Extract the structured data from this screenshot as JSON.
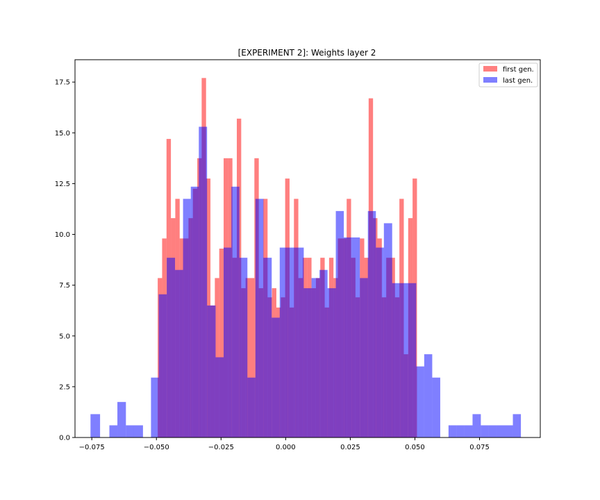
{
  "chart_data": {
    "type": "bar",
    "title": "[EXPERIMENT 2]: Weights layer 2",
    "xlabel": "",
    "ylabel": "",
    "xlim": [
      -0.0815,
      0.0985
    ],
    "ylim": [
      0,
      18.6
    ],
    "xticks": [
      "−0.075",
      "−0.050",
      "−0.025",
      "0.000",
      "0.025",
      "0.050",
      "0.075"
    ],
    "xtick_values": [
      -0.075,
      -0.05,
      -0.025,
      0.0,
      0.025,
      0.05,
      0.075
    ],
    "yticks": [
      "0.0",
      "2.5",
      "5.0",
      "7.5",
      "10.0",
      "12.5",
      "15.0",
      "17.5"
    ],
    "ytick_values": [
      0,
      2.5,
      5,
      7.5,
      10,
      12.5,
      15,
      17.5
    ],
    "grid": false,
    "legend_position": "top-right",
    "series": [
      {
        "name": "first gen.",
        "color": "#ff0000",
        "alpha": 0.5,
        "bins": [
          [
            -0.0495,
            -0.0478,
            7.85
          ],
          [
            -0.0478,
            -0.0461,
            9.8
          ],
          [
            -0.0461,
            -0.0444,
            14.7
          ],
          [
            -0.0444,
            -0.0427,
            10.8
          ],
          [
            -0.0427,
            -0.041,
            11.75
          ],
          [
            -0.041,
            -0.0393,
            9.8
          ],
          [
            -0.0393,
            -0.0376,
            9.8
          ],
          [
            -0.0376,
            -0.0359,
            10.8
          ],
          [
            -0.0359,
            -0.0342,
            12.25
          ],
          [
            -0.0342,
            -0.0325,
            13.75
          ],
          [
            -0.0325,
            -0.0308,
            17.7
          ],
          [
            -0.0308,
            -0.0291,
            12.75
          ],
          [
            -0.0291,
            -0.0274,
            6.5
          ],
          [
            -0.0274,
            -0.0257,
            7.85
          ],
          [
            -0.0257,
            -0.024,
            9.3
          ],
          [
            -0.024,
            -0.0223,
            13.75
          ],
          [
            -0.0223,
            -0.0206,
            13.75
          ],
          [
            -0.0206,
            -0.0189,
            8.85
          ],
          [
            -0.0189,
            -0.0172,
            15.7
          ],
          [
            -0.0172,
            -0.0155,
            7.35
          ],
          [
            -0.0155,
            -0.0138,
            7.85
          ],
          [
            -0.0138,
            -0.0121,
            7.85
          ],
          [
            -0.0121,
            -0.0104,
            13.75
          ],
          [
            -0.0104,
            -0.0087,
            7.35
          ],
          [
            -0.0087,
            -0.007,
            11.75
          ],
          [
            -0.007,
            -0.0053,
            6.9
          ],
          [
            -0.0053,
            -0.0036,
            7.35
          ],
          [
            -0.0036,
            -0.0019,
            6.4
          ],
          [
            -0.0019,
            -0.0002,
            6.9
          ],
          [
            -0.0002,
            0.0015,
            12.75
          ],
          [
            0.0015,
            0.0032,
            6.4
          ],
          [
            0.0032,
            0.0049,
            11.75
          ],
          [
            0.0049,
            0.0066,
            7.85
          ],
          [
            0.0066,
            0.0083,
            8.85
          ],
          [
            0.0083,
            0.01,
            8.85
          ],
          [
            0.01,
            0.0117,
            7.35
          ],
          [
            0.0117,
            0.0134,
            7.85
          ],
          [
            0.0134,
            0.0151,
            8.85
          ],
          [
            0.0151,
            0.0168,
            6.4
          ],
          [
            0.0168,
            0.0185,
            8.85
          ],
          [
            0.0185,
            0.0202,
            7.85
          ],
          [
            0.0202,
            0.0219,
            9.8
          ],
          [
            0.0219,
            0.0236,
            9.8
          ],
          [
            0.0236,
            0.0253,
            11.75
          ],
          [
            0.0253,
            0.027,
            8.85
          ],
          [
            0.027,
            0.0287,
            6.9
          ],
          [
            0.0287,
            0.0304,
            9.8
          ],
          [
            0.0304,
            0.0321,
            8.85
          ],
          [
            0.0321,
            0.0338,
            16.7
          ],
          [
            0.0338,
            0.0355,
            10.8
          ],
          [
            0.0355,
            0.0372,
            9.8
          ],
          [
            0.0372,
            0.0389,
            6.9
          ],
          [
            0.0389,
            0.0406,
            8.85
          ],
          [
            0.0406,
            0.0423,
            8.85
          ],
          [
            0.0423,
            0.044,
            6.9
          ],
          [
            0.044,
            0.0457,
            11.75
          ],
          [
            0.0457,
            0.0474,
            4.1
          ],
          [
            0.0474,
            0.0491,
            10.8
          ],
          [
            0.0491,
            0.0508,
            12.75
          ]
        ]
      },
      {
        "name": "last gen.",
        "color": "#0000ff",
        "alpha": 0.5,
        "bins": [
          [
            -0.0755,
            -0.0718,
            1.15
          ],
          [
            -0.0718,
            -0.0682,
            0
          ],
          [
            -0.0682,
            -0.0651,
            0.6
          ],
          [
            -0.0651,
            -0.0618,
            1.75
          ],
          [
            -0.0618,
            -0.0588,
            0.6
          ],
          [
            -0.0588,
            -0.0552,
            0.6
          ],
          [
            -0.0552,
            -0.0521,
            0
          ],
          [
            -0.0521,
            -0.0491,
            2.95
          ],
          [
            -0.0491,
            -0.046,
            7.05
          ],
          [
            -0.046,
            -0.0428,
            8.85
          ],
          [
            -0.0428,
            -0.0397,
            8.25
          ],
          [
            -0.0397,
            -0.0367,
            11.75
          ],
          [
            -0.0367,
            -0.0336,
            12.35
          ],
          [
            -0.0336,
            -0.0304,
            15.3
          ],
          [
            -0.0304,
            -0.0271,
            6.5
          ],
          [
            -0.0271,
            -0.024,
            3.95
          ],
          [
            -0.024,
            -0.021,
            9.35
          ],
          [
            -0.021,
            -0.0179,
            12.35
          ],
          [
            -0.0179,
            -0.0148,
            8.85
          ],
          [
            -0.0148,
            -0.0117,
            2.95
          ],
          [
            -0.0117,
            -0.0086,
            11.75
          ],
          [
            -0.0086,
            -0.0054,
            8.85
          ],
          [
            -0.0054,
            -0.0023,
            5.9
          ],
          [
            -0.0023,
            0.0008,
            9.35
          ],
          [
            0.0008,
            0.0039,
            9.35
          ],
          [
            0.0039,
            0.007,
            9.35
          ],
          [
            0.007,
            0.01,
            7.35
          ],
          [
            0.01,
            0.0131,
            7.85
          ],
          [
            0.0131,
            0.0162,
            8.25
          ],
          [
            0.0162,
            0.0194,
            7.35
          ],
          [
            0.0194,
            0.0225,
            11.15
          ],
          [
            0.0225,
            0.0256,
            9.85
          ],
          [
            0.0256,
            0.0287,
            9.85
          ],
          [
            0.0287,
            0.0318,
            7.85
          ],
          [
            0.0318,
            0.0349,
            11.15
          ],
          [
            0.0349,
            0.038,
            9.35
          ],
          [
            0.038,
            0.0412,
            10.55
          ],
          [
            0.0412,
            0.0443,
            7.6
          ],
          [
            0.0443,
            0.0474,
            7.6
          ],
          [
            0.0474,
            0.0505,
            7.6
          ],
          [
            0.0505,
            0.0536,
            3.5
          ],
          [
            0.0536,
            0.0567,
            4.1
          ],
          [
            0.0567,
            0.0598,
            2.95
          ],
          [
            0.0598,
            0.063,
            0
          ],
          [
            0.063,
            0.0661,
            0.6
          ],
          [
            0.0661,
            0.0692,
            0.6
          ],
          [
            0.0692,
            0.0723,
            0.6
          ],
          [
            0.0723,
            0.0755,
            1.15
          ],
          [
            0.0755,
            0.0786,
            0.6
          ],
          [
            0.0786,
            0.0817,
            0.6
          ],
          [
            0.0817,
            0.0848,
            0.6
          ],
          [
            0.0848,
            0.0879,
            0.6
          ],
          [
            0.0879,
            0.091,
            1.15
          ]
        ]
      }
    ]
  }
}
